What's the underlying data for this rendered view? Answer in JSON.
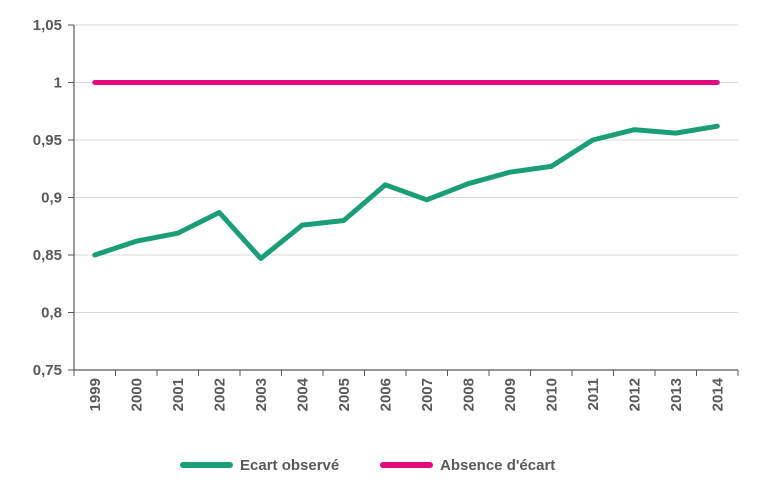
{
  "chart_data": {
    "type": "line",
    "x": [
      "1999",
      "2000",
      "2001",
      "2002",
      "2003",
      "2004",
      "2005",
      "2006",
      "2007",
      "2008",
      "2009",
      "2010",
      "2011",
      "2012",
      "2013",
      "2014"
    ],
    "series": [
      {
        "name": "Ecart observé",
        "color": "#1a9e77",
        "values": [
          0.85,
          0.862,
          0.869,
          0.887,
          0.847,
          0.876,
          0.88,
          0.911,
          0.898,
          0.912,
          0.922,
          0.927,
          0.95,
          0.959,
          0.956,
          0.962
        ]
      },
      {
        "name": "Absence d'écart",
        "color": "#e3097f",
        "values": [
          1,
          1,
          1,
          1,
          1,
          1,
          1,
          1,
          1,
          1,
          1,
          1,
          1,
          1,
          1,
          1
        ]
      }
    ],
    "ylim": [
      0.75,
      1.05
    ],
    "yticks": [
      {
        "value": 0.75,
        "label": "0,75"
      },
      {
        "value": 0.8,
        "label": "0,8"
      },
      {
        "value": 0.85,
        "label": "0,85"
      },
      {
        "value": 0.9,
        "label": "0,9"
      },
      {
        "value": 0.95,
        "label": "0,95"
      },
      {
        "value": 1,
        "label": "1"
      },
      {
        "value": 1.05,
        "label": "1,05"
      }
    ],
    "grid": true,
    "legend": "bottom",
    "title": "",
    "xlabel": "",
    "ylabel": ""
  }
}
